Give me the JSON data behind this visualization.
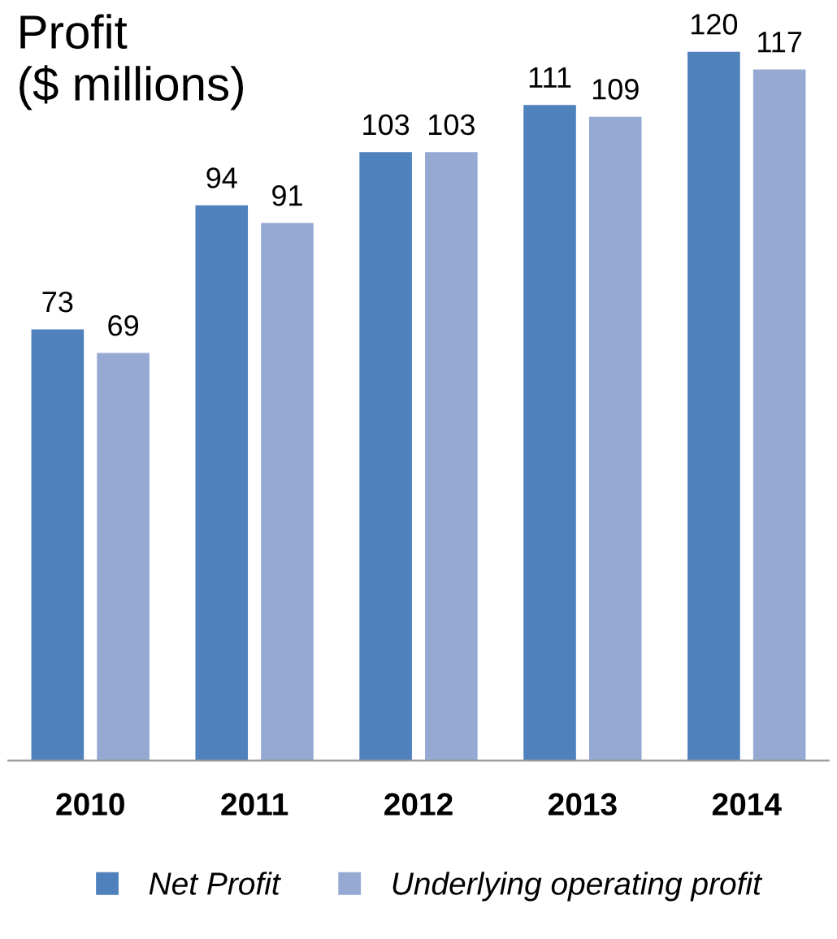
{
  "chart_data": {
    "type": "bar",
    "title": "Profit\n($ millions)",
    "categories": [
      "2010",
      "2011",
      "2012",
      "2013",
      "2014"
    ],
    "series": [
      {
        "name": "Net Profit",
        "color": "#4f81bd",
        "values": [
          73,
          94,
          103,
          111,
          120
        ]
      },
      {
        "name": "Underlying operating profit",
        "color": "#95a9d3",
        "values": [
          69,
          91,
          103,
          109,
          117
        ]
      }
    ],
    "data_labels": true,
    "grid": false,
    "legend": "bottom",
    "tick_labels": "x"
  }
}
